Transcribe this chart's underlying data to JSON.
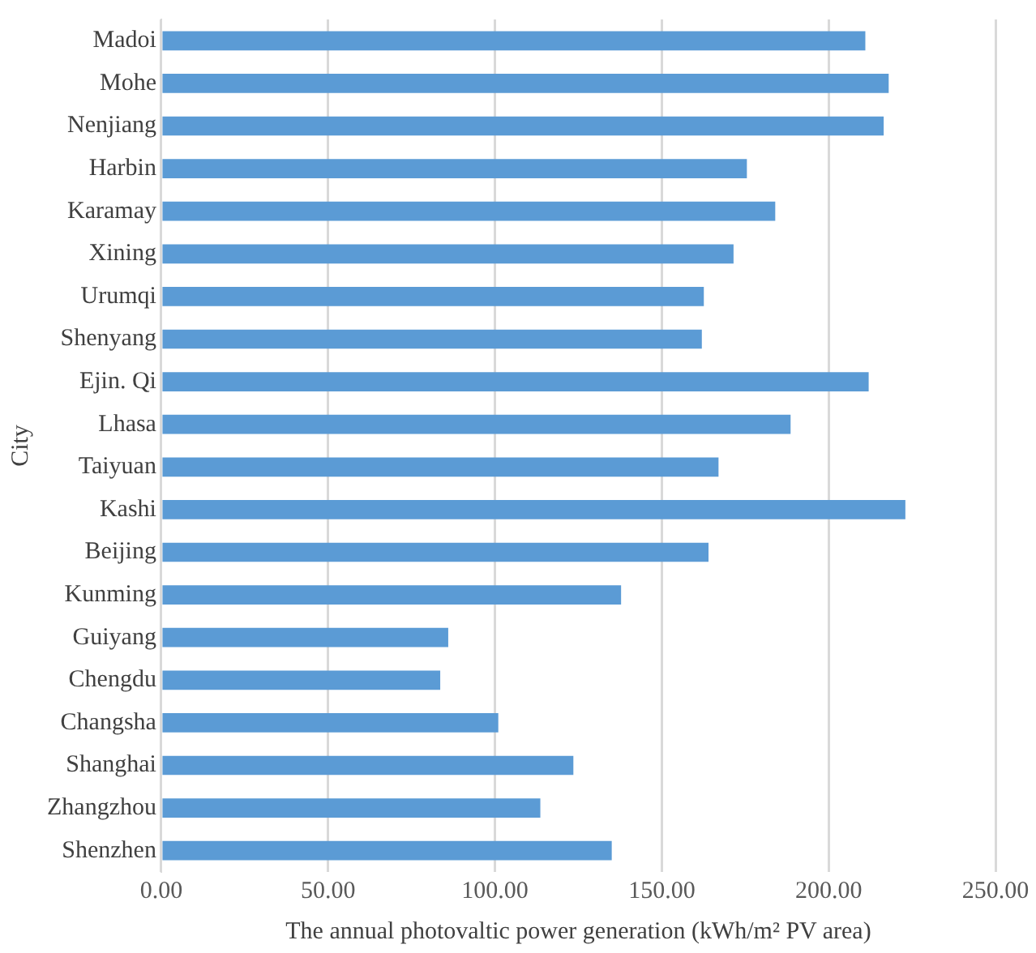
{
  "chart_data": {
    "type": "bar",
    "orientation": "horizontal",
    "xlabel": "The annual photovaltic power generation (kWh/m² PV area)",
    "ylabel": "City",
    "categories": [
      "Madoi",
      "Mohe",
      "Nenjiang",
      "Harbin",
      "Karamay",
      "Xining",
      "Urumqi",
      "Shenyang",
      "Ejin. Qi",
      "Lhasa",
      "Taiyuan",
      "Kashi",
      "Beijing",
      "Kunming",
      "Guiyang",
      "Chengdu",
      "Changsha",
      "Shanghai",
      "Zhangzhou",
      "Shenzhen"
    ],
    "values": [
      211,
      218,
      216.5,
      175.5,
      184,
      171.5,
      162.6,
      162,
      212,
      188.6,
      167,
      223,
      164,
      137.8,
      86,
      83.6,
      101,
      123.5,
      113.6,
      135
    ],
    "color": "#5b9bd5",
    "xlim": [
      0,
      250
    ],
    "xticks": [
      {
        "value": 0,
        "label": "0.00"
      },
      {
        "value": 50,
        "label": "50.00"
      },
      {
        "value": 100,
        "label": "100.00"
      },
      {
        "value": 150,
        "label": "150.00"
      },
      {
        "value": 200,
        "label": "200.00"
      },
      {
        "value": 250,
        "label": "250.00"
      }
    ],
    "grid": "x",
    "legend": false
  }
}
